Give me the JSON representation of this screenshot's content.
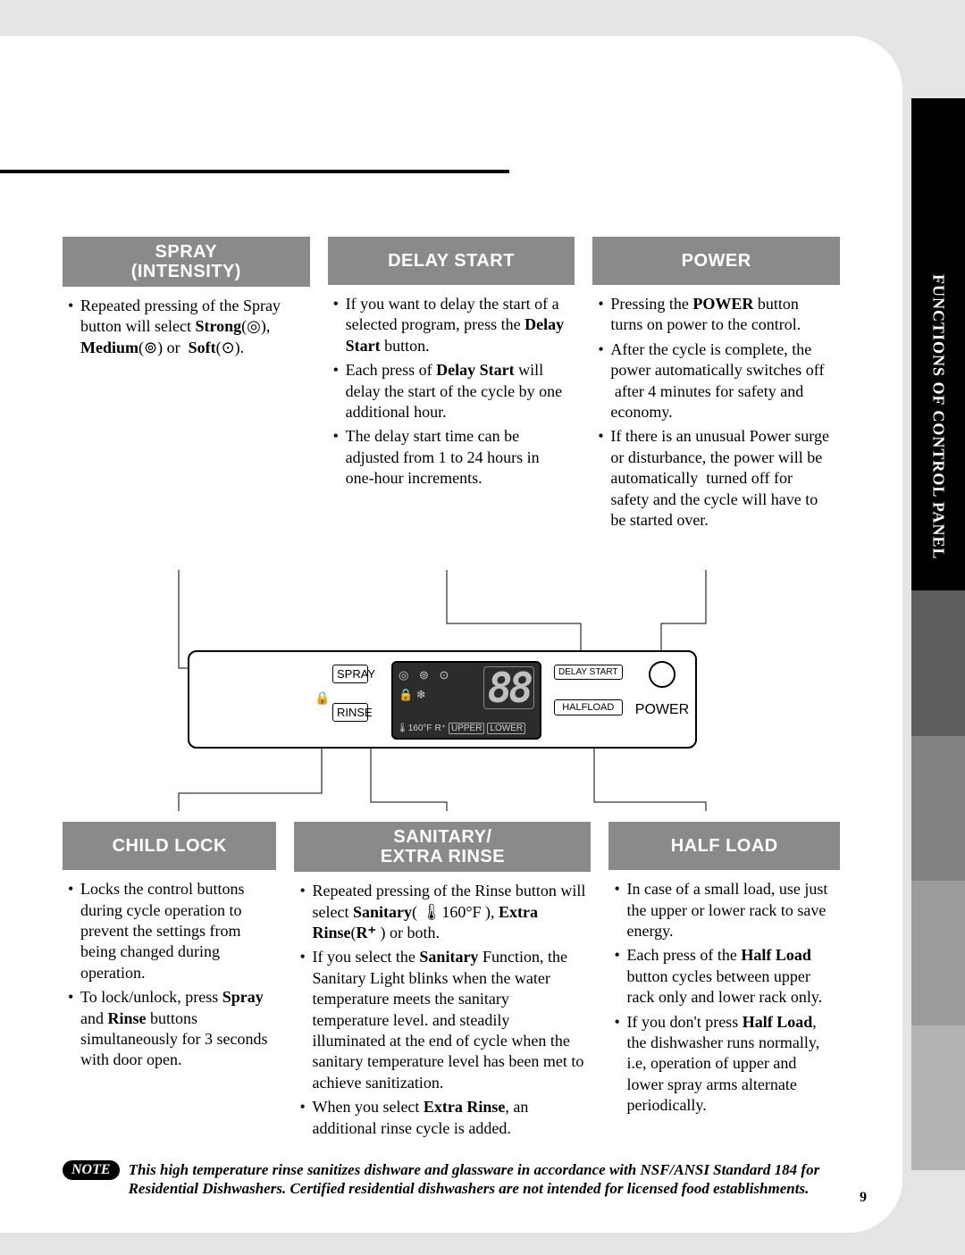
{
  "sidebar": {
    "section_label": "FUNCTIONS OF CONTROL PANEL",
    "tab_colors": [
      "#000000",
      "#000000",
      "#5d5d5d",
      "#838383",
      "#9c9c9c",
      "#b4b4b4"
    ]
  },
  "page_number": "9",
  "top_boxes": [
    {
      "title": "SPRAY\n(INTENSITY)",
      "items": [
        "Repeated pressing of the Spray button will select <b>Strong</b>(◎), <b>Medium</b>(⊚) or &nbsp;<b>Soft</b>(⊙)."
      ]
    },
    {
      "title": "DELAY START",
      "items": [
        "If you want to delay the start of a selected program, press the <b>Delay Start</b> button.",
        "Each press of <b>Delay Start</b> will delay the start of the cycle by one additional hour.",
        "The delay start time can be adjusted from 1 to 24 hours in one-hour increments."
      ]
    },
    {
      "title": "POWER",
      "items": [
        "Pressing the <b>POWER</b> button turns on power to the control.",
        "After the cycle is complete, the power automatically switches off &nbsp;after 4 minutes for safety and economy.",
        "If there is an unusual Power surge or disturbance, the power will be automatically &nbsp;turned off for safety and the cycle will have to be started over."
      ]
    }
  ],
  "bottom_boxes": [
    {
      "title": "CHILD LOCK",
      "items": [
        "Locks the control buttons during cycle operation to prevent the settings from being changed during operation.",
        "To lock/unlock, press <b>Spray</b> and <b>Rinse</b> buttons simultaneously for 3 seconds with door open."
      ]
    },
    {
      "title": "SANITARY/\nEXTRA RINSE",
      "items": [
        "Repeated pressing of the Rinse button will select <b>Sanitary</b>( 🌡160°F ), <b>Extra Rinse</b>(<b>R⁺</b> ) or both.",
        "If you select the <b>Sanitary</b> Function, the Sanitary Light blinks when the water temperature meets the sanitary temperature level. and steadily illuminated at the end of cycle when the sanitary temperature level has been met to achieve sanitization.",
        "When you select <b>Extra Rinse</b>, an additional rinse cycle is added."
      ]
    },
    {
      "title": "HALF LOAD",
      "items": [
        "In case of a small load, use just the upper or lower rack to save energy.",
        "Each press of the <b>Half Load</b> button cycles between upper rack only and lower rack only.",
        "If you don't press <b>Half Load</b>, the dishwasher runs normally, i.e, operation of upper and lower spray arms alternate periodically."
      ]
    }
  ],
  "panel": {
    "spray": "SPRAY",
    "rinse": "RINSE",
    "delay_start": "DELAY START",
    "halfload": "HALFLOAD",
    "power": "POWER",
    "digits": "88",
    "upper": "UPPER",
    "lower": "LOWER",
    "temp": "🌡160°F",
    "rplus": "R⁺",
    "spray_icons": "◎ ⊚ ⊙",
    "misc_icons": "🔒   ❄"
  },
  "note": {
    "label": "NOTE",
    "text": "This high temperature rinse sanitizes dishware and glassware in accordance with NSF/ANSI Standard 184 for Residential Dishwashers. Certified residential dishwashers are not intended for licensed food establishments."
  }
}
